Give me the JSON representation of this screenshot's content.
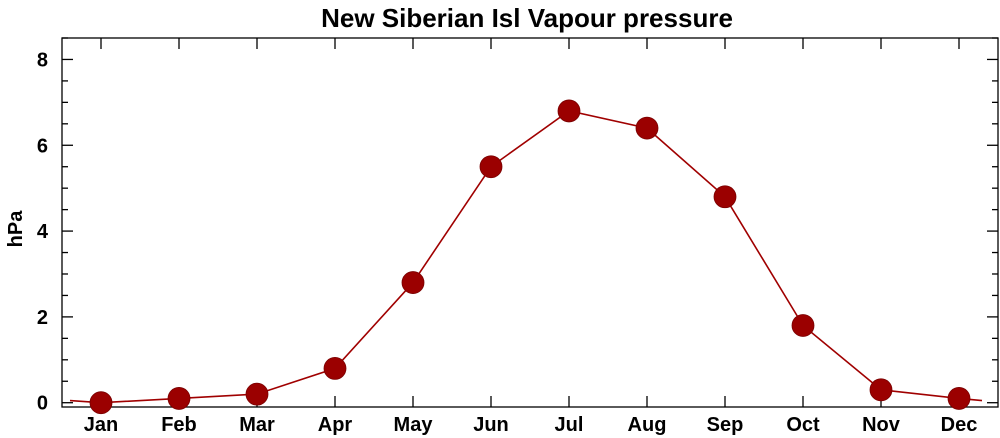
{
  "chart_data": {
    "type": "line",
    "title": "New Siberian Isl Vapour pressure",
    "xlabel": "",
    "ylabel": "hPa",
    "categories": [
      "Jan",
      "Feb",
      "Mar",
      "Apr",
      "May",
      "Jun",
      "Jul",
      "Aug",
      "Sep",
      "Oct",
      "Nov",
      "Dec"
    ],
    "series": [
      {
        "values": [
          0.0,
          0.1,
          0.2,
          0.8,
          2.8,
          5.5,
          6.8,
          6.4,
          4.8,
          1.8,
          0.3,
          0.1
        ]
      }
    ],
    "ylim": [
      -0.1,
      8.5
    ],
    "yticks": [
      0,
      2,
      4,
      6,
      8
    ],
    "yminor_step": 0.5,
    "color": "#a00000",
    "marker_color": "#9b0000",
    "grid": false,
    "legend": "none"
  }
}
